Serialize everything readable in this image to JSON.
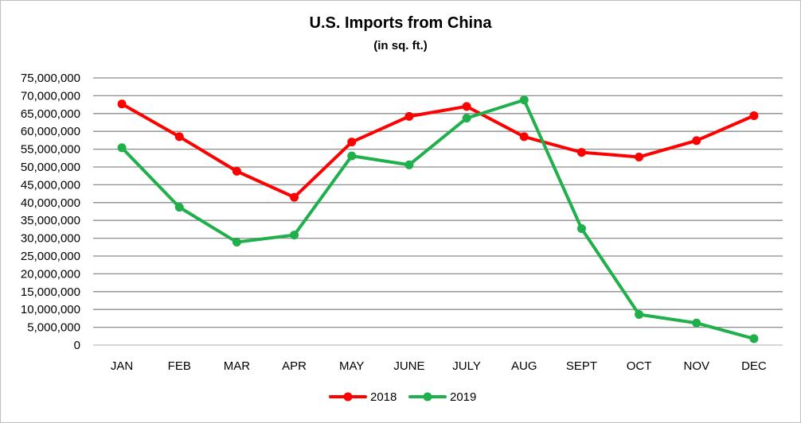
{
  "chart_data": {
    "type": "line",
    "title": "U.S. Imports from China",
    "subtitle": "(in sq. ft.)",
    "xlabel": "",
    "ylabel": "",
    "categories": [
      "JAN",
      "FEB",
      "MAR",
      "APR",
      "MAY",
      "JUNE",
      "JULY",
      "AUG",
      "SEPT",
      "OCT",
      "NOV",
      "DEC"
    ],
    "ylim": [
      0,
      75000000
    ],
    "y_tick_step": 5000000,
    "y_tick_labels": [
      "0",
      "5,000,000",
      "10,000,000",
      "15,000,000",
      "20,000,000",
      "25,000,000",
      "30,000,000",
      "35,000,000",
      "40,000,000",
      "45,000,000",
      "50,000,000",
      "55,000,000",
      "60,000,000",
      "65,000,000",
      "70,000,000",
      "75,000,000"
    ],
    "grid": true,
    "legend_position": "bottom",
    "series": [
      {
        "name": "2018",
        "color": "#ff0000",
        "values": [
          67700000,
          58500000,
          48800000,
          41500000,
          57000000,
          64200000,
          67000000,
          58500000,
          54100000,
          52800000,
          57400000,
          64400000
        ]
      },
      {
        "name": "2019",
        "color": "#1fb04c",
        "values": [
          55400000,
          38700000,
          28900000,
          30900000,
          53100000,
          50600000,
          63700000,
          68800000,
          32700000,
          8600000,
          6200000,
          1800000
        ]
      }
    ]
  }
}
